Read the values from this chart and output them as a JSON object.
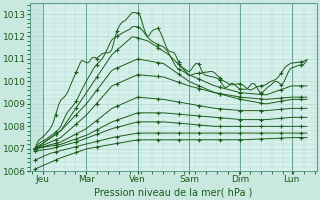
{
  "xlabel": "Pression niveau de la mer( hPa )",
  "ylim": [
    1006,
    1013.5
  ],
  "yticks": [
    1006,
    1007,
    1008,
    1009,
    1010,
    1011,
    1012,
    1013
  ],
  "bg_left": "#c8e8e0",
  "bg_right": "#d8f0ec",
  "grid_color": "#b0d8d0",
  "line_color": "#1a5c1a",
  "day_labels": [
    "Jeu",
    "Mar",
    "Ven",
    "Sam",
    "Dim",
    "Lun"
  ],
  "day_positions": [
    0,
    1,
    2,
    3,
    4,
    5
  ],
  "xlabel_color": "#1a5c1a",
  "tick_color": "#1a5c1a"
}
